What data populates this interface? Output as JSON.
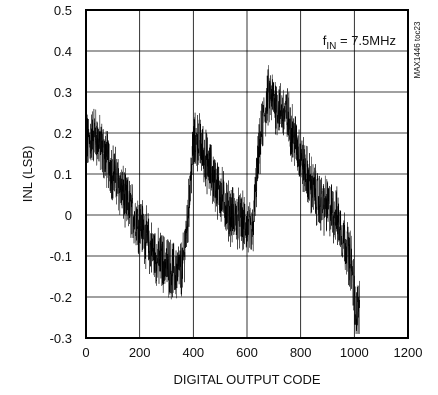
{
  "chart_data": {
    "type": "line",
    "title": "",
    "xlabel": "DIGITAL OUTPUT CODE",
    "ylabel": "INL (LSB)",
    "xlim": [
      0,
      1200
    ],
    "ylim": [
      -0.3,
      0.5
    ],
    "xticks": [
      "0",
      "200",
      "400",
      "600",
      "800",
      "1000",
      "1200"
    ],
    "yticks": [
      "0.5",
      "0.4",
      "0.3",
      "0.2",
      "0.1",
      "0",
      "-0.1",
      "-0.2",
      "-0.3"
    ],
    "grid": true,
    "annotation": {
      "main": "f",
      "sub": "IN",
      "rest": " = 7.5MHz"
    },
    "side_label": "MAX1446 toc23",
    "series": [
      {
        "color": "#000000",
        "envelope": {
          "x": [
            0,
            30,
            60,
            90,
            120,
            150,
            180,
            210,
            240,
            270,
            300,
            330,
            360,
            380,
            400,
            420,
            450,
            480,
            510,
            540,
            570,
            600,
            620,
            640,
            660,
            680,
            700,
            720,
            750,
            780,
            810,
            840,
            870,
            900,
            930,
            960,
            990,
            1000,
            1010,
            1020
          ],
          "mean": [
            0.17,
            0.2,
            0.16,
            0.12,
            0.08,
            0.03,
            0.0,
            -0.03,
            -0.08,
            -0.11,
            -0.12,
            -0.14,
            -0.13,
            0.0,
            0.17,
            0.18,
            0.13,
            0.08,
            0.04,
            0.0,
            -0.01,
            -0.03,
            -0.05,
            0.12,
            0.23,
            0.29,
            0.28,
            0.26,
            0.24,
            0.18,
            0.12,
            0.07,
            0.03,
            0.02,
            0.0,
            -0.05,
            -0.12,
            -0.2,
            -0.24,
            -0.22
          ],
          "spread": 0.06
        }
      }
    ]
  }
}
